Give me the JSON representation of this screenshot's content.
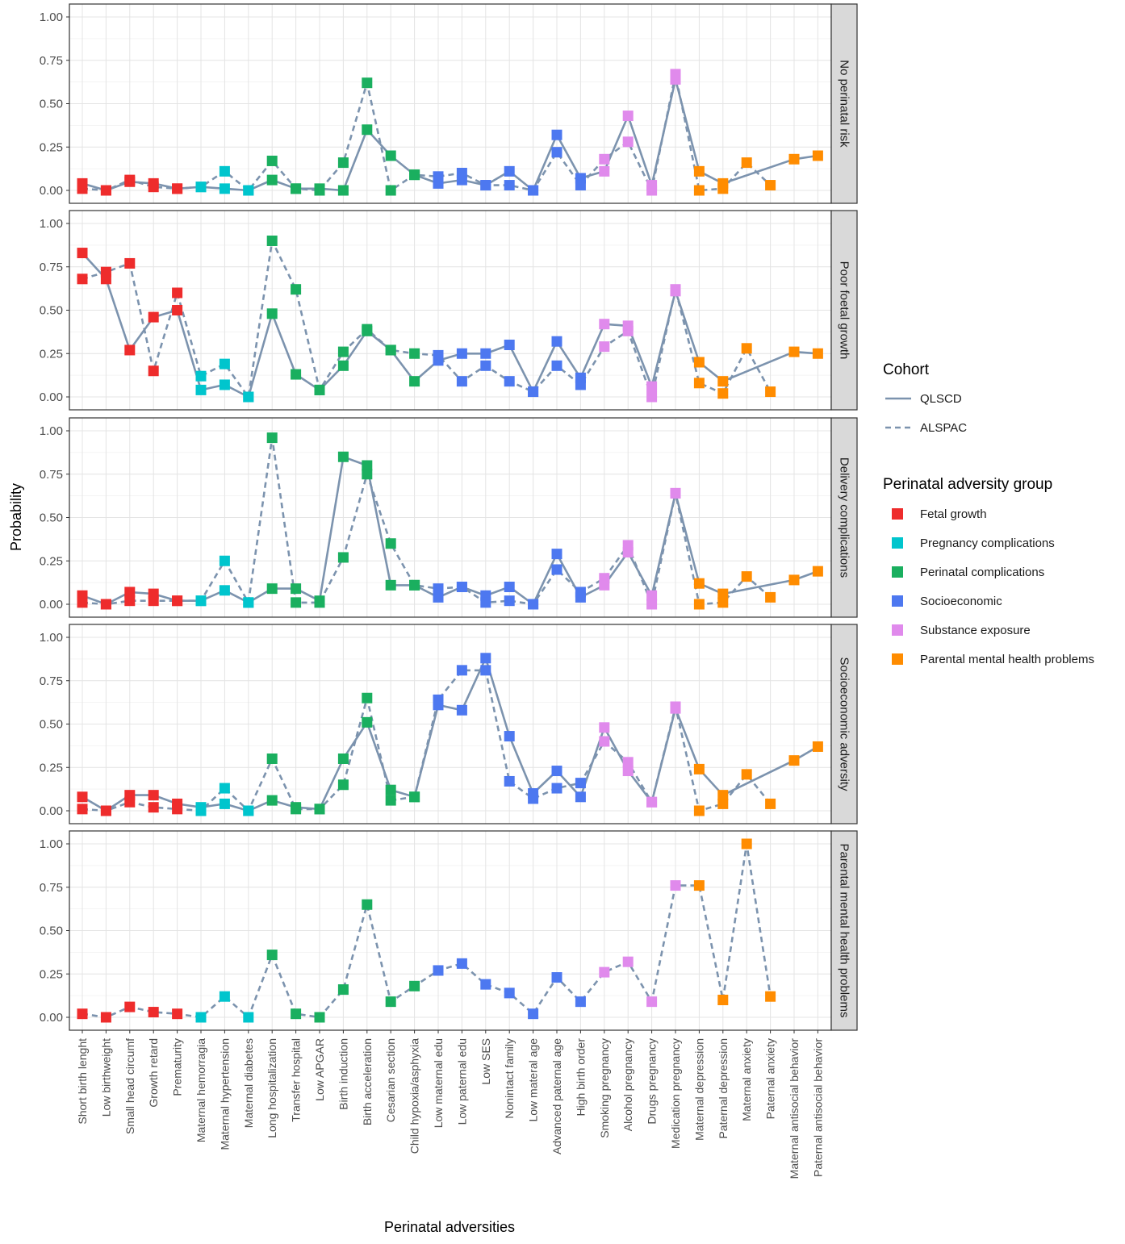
{
  "chart_data": {
    "type": "line",
    "xlabel": "Perinatal adversities",
    "ylabel": "Probability",
    "ylim": [
      0,
      1
    ],
    "yticks": [
      "0.00",
      "0.25",
      "0.50",
      "0.75",
      "1.00"
    ],
    "grid": true,
    "categories": [
      "Short birth lenght",
      "Low birthweight",
      "Small head circumf",
      "Growth retard",
      "Prematurity",
      "Maternal hemorragia",
      "Maternal hypertension",
      "Maternal diabetes",
      "Long hospitalization",
      "Transfer hospital",
      "Low APGAR",
      "Birth induction",
      "Birth acceleration",
      "Cesarian section",
      "Child hypoxia/asphyxia",
      "Low maternal edu",
      "Low paternal edu",
      "Low SES",
      "Nonintact family",
      "Low materal age",
      "Advanced paternal age",
      "High birth order",
      "Smoking pregnancy",
      "Alcohol pregnancy",
      "Drugs pregnancy",
      "Medication pregnancy",
      "Maternal depression",
      "Paternal depression",
      "Maternal anxiety",
      "Paternal anxiety",
      "Maternal antisocial behavior",
      "Paternal antisocial behavior"
    ],
    "category_groups": [
      0,
      0,
      0,
      0,
      0,
      1,
      1,
      1,
      2,
      2,
      2,
      2,
      2,
      2,
      2,
      3,
      3,
      3,
      3,
      3,
      3,
      3,
      4,
      4,
      4,
      4,
      5,
      5,
      5,
      5,
      5,
      5
    ],
    "groups": [
      {
        "name": "Fetal growth",
        "color": "#EE2C2C"
      },
      {
        "name": "Pregnancy complications",
        "color": "#00C5CD"
      },
      {
        "name": "Perinatal complications",
        "color": "#1AAF5F"
      },
      {
        "name": "Socioeconomic",
        "color": "#4D78F0"
      },
      {
        "name": "Substance exposure",
        "color": "#E08AEC"
      },
      {
        "name": "Parental mental health problems",
        "color": "#FF8C00"
      }
    ],
    "line_color": "#7C93AE",
    "legend": {
      "position": "right",
      "cohort_title": "Cohort",
      "cohort_items": [
        {
          "label": "QLSCD",
          "dash": "solid"
        },
        {
          "label": "ALSPAC",
          "dash": "dashed"
        }
      ],
      "group_title": "Perinatal adversity group"
    },
    "panels": [
      {
        "strip": "No perinatal risk",
        "series": [
          {
            "name": "QLSCD",
            "dash": "solid",
            "values": [
              0.04,
              0.0,
              0.05,
              0.04,
              0.01,
              0.02,
              0.01,
              0.0,
              0.06,
              0.01,
              0.01,
              0.0,
              0.35,
              0.2,
              0.09,
              0.04,
              0.06,
              0.03,
              0.11,
              0.0,
              0.32,
              0.07,
              0.11,
              0.43,
              0.03,
              0.64,
              0.11,
              0.04,
              null,
              null,
              0.18,
              0.2
            ]
          },
          {
            "name": "ALSPAC",
            "dash": "dashed",
            "values": [
              0.01,
              0.0,
              0.06,
              0.02,
              0.01,
              0.02,
              0.11,
              0.0,
              0.17,
              0.01,
              0.0,
              0.16,
              0.62,
              0.0,
              0.09,
              0.08,
              0.1,
              0.03,
              0.03,
              0.0,
              0.22,
              0.03,
              0.18,
              0.28,
              0.0,
              0.67,
              0.0,
              0.01,
              0.16,
              0.03,
              null,
              null
            ]
          }
        ]
      },
      {
        "strip": "Poor foetal growth",
        "series": [
          {
            "name": "QLSCD",
            "dash": "solid",
            "values": [
              0.83,
              0.68,
              0.27,
              0.46,
              0.5,
              0.04,
              0.07,
              0.0,
              0.48,
              0.13,
              0.04,
              0.18,
              0.38,
              0.27,
              0.09,
              0.21,
              0.25,
              0.25,
              0.3,
              0.03,
              0.32,
              0.11,
              0.42,
              0.41,
              0.06,
              0.61,
              0.2,
              0.09,
              null,
              null,
              0.26,
              0.25
            ]
          },
          {
            "name": "ALSPAC",
            "dash": "dashed",
            "values": [
              0.68,
              0.72,
              0.77,
              0.15,
              0.6,
              0.12,
              0.19,
              0.0,
              0.9,
              0.62,
              0.04,
              0.26,
              0.39,
              0.27,
              0.25,
              0.24,
              0.09,
              0.18,
              0.09,
              0.03,
              0.18,
              0.07,
              0.29,
              0.38,
              0.0,
              0.62,
              0.08,
              0.02,
              0.28,
              0.03,
              null,
              null
            ]
          }
        ]
      },
      {
        "strip": "Delivery complications",
        "series": [
          {
            "name": "QLSCD",
            "dash": "solid",
            "values": [
              0.05,
              0.0,
              0.07,
              0.06,
              0.02,
              0.02,
              0.08,
              0.01,
              0.09,
              0.09,
              0.02,
              0.85,
              0.8,
              0.11,
              0.11,
              0.04,
              0.1,
              0.05,
              0.1,
              0.0,
              0.29,
              0.04,
              0.11,
              0.3,
              0.05,
              0.64,
              0.12,
              0.06,
              null,
              null,
              0.14,
              0.19
            ]
          },
          {
            "name": "ALSPAC",
            "dash": "dashed",
            "values": [
              0.01,
              0.0,
              0.02,
              0.02,
              0.02,
              0.02,
              0.25,
              0.01,
              0.96,
              0.01,
              0.01,
              0.27,
              0.75,
              0.35,
              0.11,
              0.09,
              0.1,
              0.01,
              0.02,
              0.0,
              0.2,
              0.07,
              0.15,
              0.34,
              0.0,
              0.64,
              0.0,
              0.01,
              0.16,
              0.04,
              null,
              null
            ]
          }
        ]
      },
      {
        "strip": "Socioeconomic adversity",
        "series": [
          {
            "name": "QLSCD",
            "dash": "solid",
            "values": [
              0.08,
              0.0,
              0.09,
              0.09,
              0.04,
              0.02,
              0.04,
              0.0,
              0.06,
              0.02,
              0.01,
              0.3,
              0.51,
              0.12,
              0.08,
              0.61,
              0.58,
              0.88,
              0.43,
              0.1,
              0.23,
              0.08,
              0.48,
              0.23,
              0.05,
              0.59,
              0.24,
              0.09,
              null,
              null,
              0.29,
              0.37
            ]
          },
          {
            "name": "ALSPAC",
            "dash": "dashed",
            "values": [
              0.01,
              0.0,
              0.05,
              0.02,
              0.01,
              0.0,
              0.13,
              0.0,
              0.3,
              0.01,
              0.01,
              0.15,
              0.65,
              0.06,
              0.08,
              0.64,
              0.81,
              0.81,
              0.17,
              0.07,
              0.13,
              0.16,
              0.4,
              0.28,
              0.05,
              0.6,
              0.0,
              0.04,
              0.21,
              0.04,
              null,
              null
            ]
          }
        ]
      },
      {
        "strip": "Parental mental health problems",
        "series": [
          {
            "name": "ALSPAC",
            "dash": "dashed",
            "values": [
              0.02,
              0.0,
              0.06,
              0.03,
              0.02,
              0.0,
              0.12,
              0.0,
              0.36,
              0.02,
              0.0,
              0.16,
              0.65,
              0.09,
              0.18,
              0.27,
              0.31,
              0.19,
              0.14,
              0.02,
              0.23,
              0.09,
              0.26,
              0.32,
              0.09,
              0.76,
              0.76,
              0.1,
              1.0,
              0.12,
              null,
              null
            ]
          }
        ]
      }
    ]
  }
}
